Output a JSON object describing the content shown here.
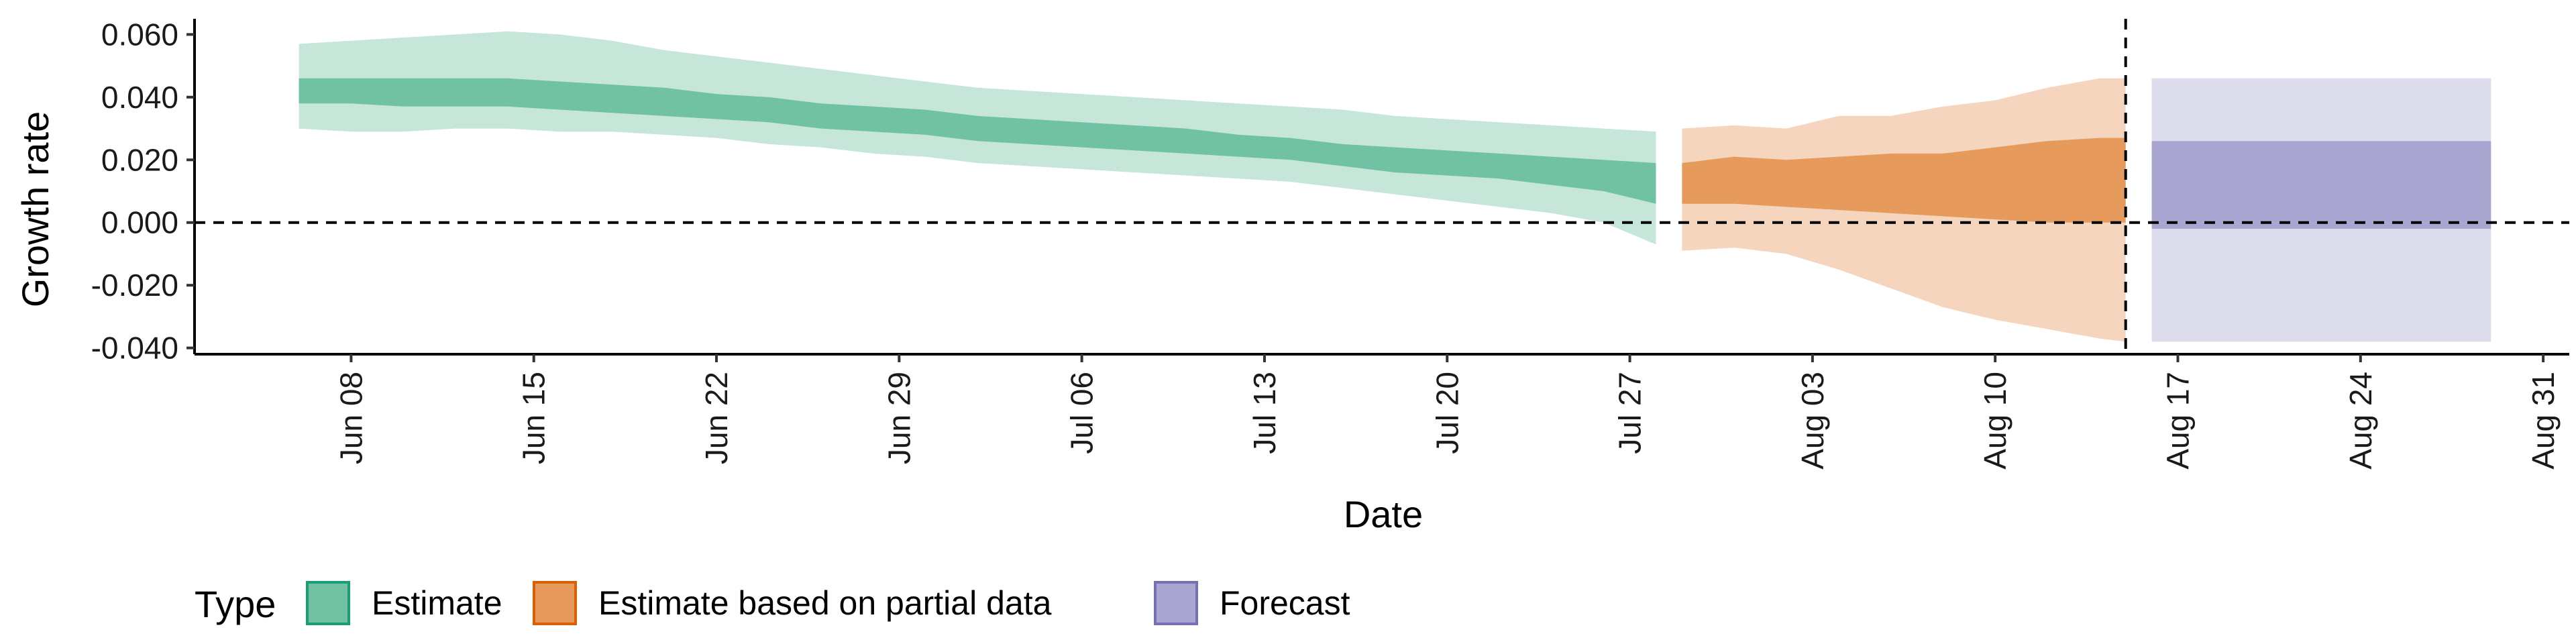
{
  "chart_data": {
    "type": "area",
    "xlabel": "Date",
    "ylabel": "Growth rate",
    "ylim": [
      -0.042,
      0.065
    ],
    "xlim": [
      "2020-06-02",
      "2020-09-01"
    ],
    "y_ticks": [
      "0.060",
      "0.040",
      "0.020",
      "0.000",
      "-0.020",
      "-0.040"
    ],
    "y_tick_values": [
      0.06,
      0.04,
      0.02,
      0.0,
      -0.02,
      -0.04
    ],
    "x_ticks": [
      "Jun 08",
      "Jun 15",
      "Jun 22",
      "Jun 29",
      "Jul 06",
      "Jul 13",
      "Jul 20",
      "Jul 27",
      "Aug 03",
      "Aug 10",
      "Aug 17",
      "Aug 24",
      "Aug 31"
    ],
    "x_tick_dates": [
      "2020-06-08",
      "2020-06-15",
      "2020-06-22",
      "2020-06-29",
      "2020-07-06",
      "2020-07-13",
      "2020-07-20",
      "2020-07-27",
      "2020-08-03",
      "2020-08-10",
      "2020-08-17",
      "2020-08-24",
      "2020-08-31"
    ],
    "reference_lines": [
      {
        "orientation": "horizontal",
        "y": 0.0,
        "style": "dashed"
      },
      {
        "orientation": "vertical",
        "x": "2020-08-15",
        "style": "dashed"
      }
    ],
    "legend": {
      "title": "Type",
      "position": "bottom",
      "entries": [
        {
          "label": "Estimate",
          "fill": "#71c2a4",
          "border": "#1b9e77"
        },
        {
          "label": "Estimate based on partial data",
          "fill": "#e69a5c",
          "border": "#d95f02"
        },
        {
          "label": "Forecast",
          "fill": "#a9a6d1",
          "border": "#7570b3"
        }
      ]
    },
    "series": [
      {
        "name": "Estimate",
        "inner_fill": "#71c2a4",
        "outer_fill": "#c6e6da",
        "x": [
          "2020-06-06",
          "2020-06-08",
          "2020-06-10",
          "2020-06-12",
          "2020-06-14",
          "2020-06-16",
          "2020-06-18",
          "2020-06-20",
          "2020-06-22",
          "2020-06-24",
          "2020-06-26",
          "2020-06-28",
          "2020-06-30",
          "2020-07-02",
          "2020-07-04",
          "2020-07-06",
          "2020-07-08",
          "2020-07-10",
          "2020-07-12",
          "2020-07-14",
          "2020-07-16",
          "2020-07-18",
          "2020-07-20",
          "2020-07-22",
          "2020-07-24",
          "2020-07-26",
          "2020-07-28"
        ],
        "lower90": [
          0.03,
          0.029,
          0.029,
          0.03,
          0.03,
          0.029,
          0.029,
          0.028,
          0.027,
          0.025,
          0.024,
          0.022,
          0.021,
          0.019,
          0.018,
          0.017,
          0.016,
          0.015,
          0.014,
          0.013,
          0.011,
          0.009,
          0.007,
          0.005,
          0.003,
          0.0,
          -0.007
        ],
        "lower50": [
          0.038,
          0.038,
          0.037,
          0.037,
          0.037,
          0.036,
          0.035,
          0.034,
          0.033,
          0.032,
          0.03,
          0.029,
          0.028,
          0.026,
          0.025,
          0.024,
          0.023,
          0.022,
          0.021,
          0.02,
          0.018,
          0.016,
          0.015,
          0.014,
          0.012,
          0.01,
          0.006
        ],
        "upper50": [
          0.046,
          0.046,
          0.046,
          0.046,
          0.046,
          0.045,
          0.044,
          0.043,
          0.041,
          0.04,
          0.038,
          0.037,
          0.036,
          0.034,
          0.033,
          0.032,
          0.031,
          0.03,
          0.028,
          0.027,
          0.025,
          0.024,
          0.023,
          0.022,
          0.021,
          0.02,
          0.019
        ],
        "upper90": [
          0.057,
          0.058,
          0.059,
          0.06,
          0.061,
          0.06,
          0.058,
          0.055,
          0.053,
          0.051,
          0.049,
          0.047,
          0.045,
          0.043,
          0.042,
          0.041,
          0.04,
          0.039,
          0.038,
          0.037,
          0.036,
          0.034,
          0.033,
          0.032,
          0.031,
          0.03,
          0.029
        ]
      },
      {
        "name": "Estimate based on partial data",
        "inner_fill": "#e69a5c",
        "outer_fill": "#f5d5bd",
        "x": [
          "2020-07-29",
          "2020-07-31",
          "2020-08-02",
          "2020-08-04",
          "2020-08-06",
          "2020-08-08",
          "2020-08-10",
          "2020-08-12",
          "2020-08-14",
          "2020-08-15"
        ],
        "lower90": [
          -0.009,
          -0.008,
          -0.01,
          -0.015,
          -0.021,
          -0.027,
          -0.031,
          -0.034,
          -0.037,
          -0.038
        ],
        "lower50": [
          0.006,
          0.006,
          0.005,
          0.004,
          0.003,
          0.002,
          0.001,
          0.0,
          0.0,
          0.0
        ],
        "upper50": [
          0.019,
          0.021,
          0.02,
          0.021,
          0.022,
          0.022,
          0.024,
          0.026,
          0.027,
          0.027
        ],
        "upper90": [
          0.03,
          0.031,
          0.03,
          0.034,
          0.034,
          0.037,
          0.039,
          0.043,
          0.046,
          0.046
        ]
      },
      {
        "name": "Forecast",
        "inner_fill": "#a9a6d1",
        "outer_fill": "#dddcec",
        "x": [
          "2020-08-16",
          "2020-08-29"
        ],
        "lower90": [
          -0.038,
          -0.038
        ],
        "lower50": [
          -0.002,
          -0.002
        ],
        "upper50": [
          0.026,
          0.026
        ],
        "upper90": [
          0.046,
          0.046
        ]
      }
    ]
  }
}
